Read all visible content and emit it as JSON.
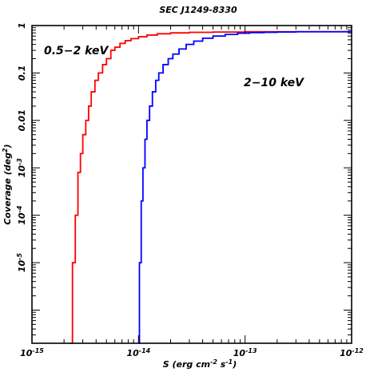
{
  "chart_data": {
    "type": "line",
    "title": "SEC J1249-8330",
    "xlabel": {
      "base": "S (erg cm",
      "sup1": "-2",
      "mid": " s",
      "sup2": "-1",
      "end": ")"
    },
    "ylabel": {
      "base": "Coverage (deg",
      "sup": "2",
      "end": ")"
    },
    "x_scale": "log",
    "y_scale": "log",
    "xlim": [
      1e-15,
      1e-12
    ],
    "ylim": [
      2e-07,
      1
    ],
    "x_ticks": [
      {
        "value": 1e-15,
        "mant": "10",
        "exp": "-15"
      },
      {
        "value": 1e-14,
        "mant": "10",
        "exp": "-14"
      },
      {
        "value": 1e-13,
        "mant": "10",
        "exp": "-13"
      },
      {
        "value": 1e-12,
        "mant": "10",
        "exp": "-12"
      }
    ],
    "y_ticks": [
      {
        "value": 1,
        "text": "1"
      },
      {
        "value": 0.1,
        "text": "0.1"
      },
      {
        "value": 0.01,
        "text": "0.01"
      },
      {
        "value": 0.001,
        "mant": "10",
        "exp": "-3"
      },
      {
        "value": 0.0001,
        "mant": "10",
        "exp": "-4"
      },
      {
        "value": 1e-05,
        "mant": "10",
        "exp": "-5"
      }
    ],
    "series": [
      {
        "name": "0.5−2 keV",
        "color": "#ff0000",
        "x": [
          2.3e-15,
          2.4e-15,
          2.55e-15,
          2.7e-15,
          2.85e-15,
          3e-15,
          3.2e-15,
          3.4e-15,
          3.6e-15,
          3.9e-15,
          4.2e-15,
          4.6e-15,
          5e-15,
          5.5e-15,
          6e-15,
          6.7e-15,
          7.5e-15,
          8.5e-15,
          1e-14,
          1.2e-14,
          1.5e-14,
          2e-14,
          3e-14,
          5e-14,
          1e-13,
          2e-13,
          4e-13,
          1e-12
        ],
        "y": [
          2e-07,
          1e-05,
          0.0001,
          0.0008,
          0.002,
          0.005,
          0.01,
          0.02,
          0.04,
          0.07,
          0.1,
          0.15,
          0.2,
          0.3,
          0.35,
          0.42,
          0.48,
          0.53,
          0.58,
          0.63,
          0.67,
          0.7,
          0.72,
          0.73,
          0.74,
          0.74,
          0.74,
          0.74
        ]
      },
      {
        "name": "2−10 keV",
        "color": "#0000ff",
        "x": [
          1e-14,
          1.02e-14,
          1.06e-14,
          1.1e-14,
          1.15e-14,
          1.2e-14,
          1.27e-14,
          1.35e-14,
          1.45e-14,
          1.55e-14,
          1.7e-14,
          1.9e-14,
          2.1e-14,
          2.4e-14,
          2.8e-14,
          3.3e-14,
          4e-14,
          5e-14,
          6.5e-14,
          8.5e-14,
          1.1e-13,
          1.5e-13,
          2e-13,
          3e-13,
          5e-13,
          1e-12
        ],
        "y": [
          2e-07,
          1e-05,
          0.0002,
          0.001,
          0.004,
          0.01,
          0.02,
          0.04,
          0.07,
          0.1,
          0.15,
          0.2,
          0.25,
          0.32,
          0.4,
          0.47,
          0.54,
          0.6,
          0.65,
          0.69,
          0.71,
          0.72,
          0.73,
          0.74,
          0.74,
          0.74
        ]
      }
    ]
  }
}
